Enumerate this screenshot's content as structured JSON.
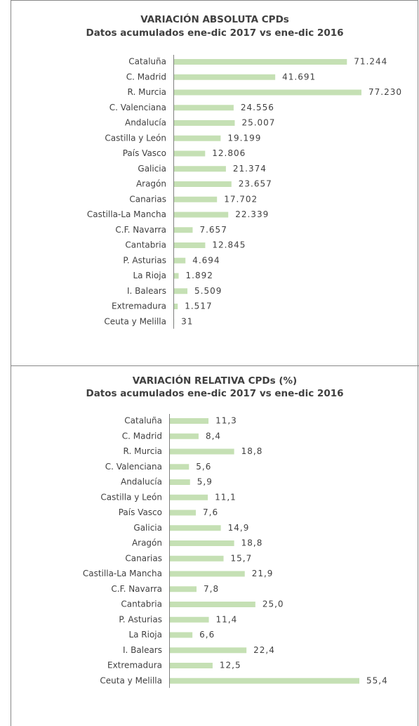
{
  "chart_data": [
    {
      "type": "bar",
      "orientation": "horizontal",
      "title": "VARIACIÓN ABSOLUTA CPDs",
      "subtitle": "Datos acumulados ene-dic 2017 vs ene-dic 2016",
      "color": "#c5e0b4",
      "categories": [
        "Cataluña",
        "C. Madrid",
        "R. Murcia",
        "C. Valenciana",
        "Andalucía",
        "Castilla y León",
        "País Vasco",
        "Galicia",
        "Aragón",
        "Canarias",
        "Castilla-La Mancha",
        "C.F. Navarra",
        "Cantabria",
        "P. Asturias",
        "La Rioja",
        "I. Balears",
        "Extremadura",
        "Ceuta y Melilla"
      ],
      "values": [
        71244,
        41691,
        77230,
        24556,
        25007,
        19199,
        12806,
        21374,
        23657,
        17702,
        22339,
        7657,
        12845,
        4694,
        1892,
        5509,
        1517,
        31
      ],
      "value_labels": [
        "71.244",
        "41.691",
        "77.230",
        "24.556",
        "25.007",
        "19.199",
        "12.806",
        "21.374",
        "23.657",
        "17.702",
        "22.339",
        "7.657",
        "12.845",
        "4.694",
        "1.892",
        "5.509",
        "1.517",
        "31"
      ]
    },
    {
      "type": "bar",
      "orientation": "horizontal",
      "title": "VARIACIÓN RELATIVA CPDs (%)",
      "subtitle": "Datos acumulados ene-dic 2017 vs ene-dic 2016",
      "color": "#c5e0b4",
      "categories": [
        "Cataluña",
        "C. Madrid",
        "R. Murcia",
        "C. Valenciana",
        "Andalucía",
        "Castilla y León",
        "País Vasco",
        "Galicia",
        "Aragón",
        "Canarias",
        "Castilla-La Mancha",
        "C.F. Navarra",
        "Cantabria",
        "P. Asturias",
        "La Rioja",
        "I. Balears",
        "Extremadura",
        "Ceuta y Melilla"
      ],
      "values": [
        11.3,
        8.4,
        18.8,
        5.6,
        5.9,
        11.1,
        7.6,
        14.9,
        18.8,
        15.7,
        21.9,
        7.8,
        25.0,
        11.4,
        6.6,
        22.4,
        12.5,
        55.4
      ],
      "value_labels": [
        "11,3",
        "8,4",
        "18,8",
        "5,6",
        "5,9",
        "11,1",
        "7,6",
        "14,9",
        "18,8",
        "15,7",
        "21,9",
        "7,8",
        "25,0",
        "11,4",
        "6,6",
        "22,4",
        "12,5",
        "55,4"
      ]
    }
  ]
}
